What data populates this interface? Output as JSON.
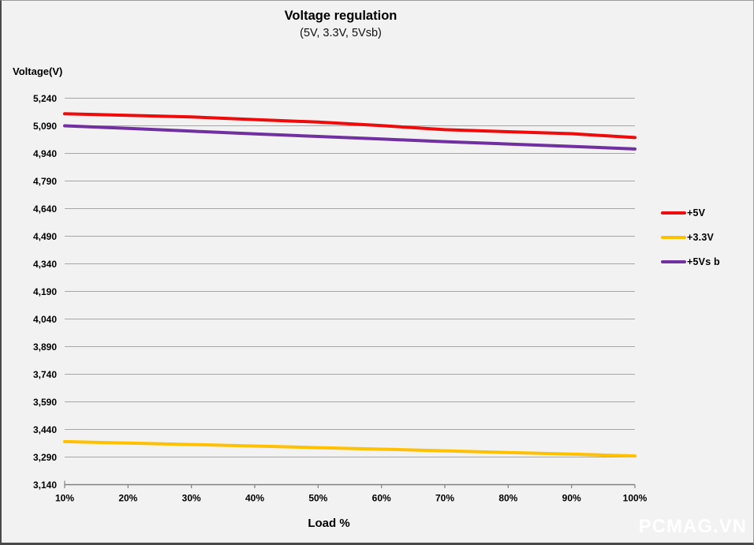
{
  "chart": {
    "title": "Voltage regulation",
    "subtitle": "(5V, 3.3V, 5Vsb)",
    "y_axis_title": "Voltage(V)",
    "x_axis_title": "Load %"
  },
  "legend": {
    "position": "right",
    "items": [
      {
        "label": "+5V",
        "color": "#ee0b0b"
      },
      {
        "label": "+3.3V",
        "color": "#ffc000"
      },
      {
        "label": "+5Vs b",
        "color": "#7030a0"
      }
    ]
  },
  "watermark": "PCMAG.VN",
  "colors": {
    "background": "#f2f2f2",
    "gridline": "#a6a6a6",
    "axis": "#808080",
    "text": "#000000",
    "series_5v": "#ee0b0b",
    "series_3_3v": "#ffc000",
    "series_5vsb": "#7030a0"
  },
  "chart_data": {
    "type": "line",
    "title": "Voltage regulation",
    "subtitle": "(5V, 3.3V, 5Vsb)",
    "xlabel": "Load %",
    "ylabel": "Voltage(V)",
    "x": [
      10,
      20,
      30,
      40,
      50,
      60,
      70,
      80,
      90,
      100
    ],
    "x_tick_labels": [
      "10%",
      "20%",
      "30%",
      "40%",
      "50%",
      "60%",
      "70%",
      "80%",
      "90%",
      "100%"
    ],
    "ylim": [
      3140,
      5240
    ],
    "y_ticks": [
      5240,
      5090,
      4940,
      4790,
      4640,
      4490,
      4340,
      4190,
      4040,
      3890,
      3740,
      3590,
      3440,
      3290,
      3140
    ],
    "y_tick_labels": [
      "5,240",
      "5,090",
      "4,940",
      "4,790",
      "4,640",
      "4,490",
      "4,340",
      "4,190",
      "4,040",
      "3,890",
      "3,740",
      "3,590",
      "3,440",
      "3,290",
      "3,140"
    ],
    "grid": true,
    "legend_position": "right",
    "series": [
      {
        "name": "+5V",
        "color": "#ee0b0b",
        "values": [
          5155,
          5147,
          5138,
          5124,
          5110,
          5091,
          5069,
          5058,
          5047,
          5026
        ]
      },
      {
        "name": "+3.3V",
        "color": "#ffc000",
        "values": [
          3374,
          3366,
          3358,
          3350,
          3341,
          3333,
          3324,
          3315,
          3306,
          3296
        ]
      },
      {
        "name": "+5Vsb",
        "color": "#7030a0",
        "values": [
          5090,
          5076,
          5061,
          5046,
          5032,
          5018,
          5004,
          4991,
          4978,
          4964
        ]
      }
    ]
  }
}
